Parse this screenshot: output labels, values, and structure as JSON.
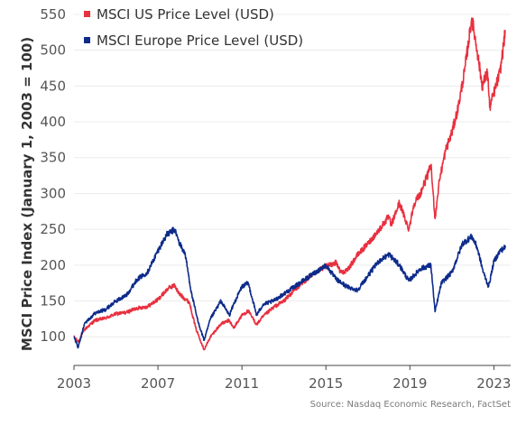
{
  "chart_data": {
    "type": "line",
    "ylabel": "MSCI Price Index (January 1, 2003 = 100)",
    "xlabel": "",
    "xlim": [
      2003,
      2023.8
    ],
    "ylim": [
      60,
      560
    ],
    "y_ticks": [
      100,
      150,
      200,
      250,
      300,
      350,
      400,
      450,
      500,
      550
    ],
    "x_ticks": [
      2003,
      2007,
      2011,
      2015,
      2019,
      2023
    ],
    "grid": "horizontal",
    "legend_position": "top-left",
    "source": "Source: Nasdaq Economic Research, FactSet",
    "series": [
      {
        "name": "MSCI US Price Level (USD)",
        "color": "#e8303f",
        "x": [
          2003.0,
          2003.2,
          2003.5,
          2004.0,
          2004.5,
          2005.0,
          2005.5,
          2006.0,
          2006.5,
          2007.0,
          2007.5,
          2007.8,
          2008.0,
          2008.5,
          2008.8,
          2009.0,
          2009.2,
          2009.5,
          2010.0,
          2010.4,
          2010.6,
          2011.0,
          2011.3,
          2011.7,
          2012.0,
          2012.5,
          2013.0,
          2013.5,
          2014.0,
          2014.5,
          2015.0,
          2015.5,
          2015.7,
          2016.0,
          2016.5,
          2017.0,
          2017.5,
          2018.0,
          2018.1,
          2018.5,
          2018.95,
          2019.2,
          2019.5,
          2019.9,
          2020.0,
          2020.2,
          2020.4,
          2020.7,
          2021.0,
          2021.3,
          2021.6,
          2021.95,
          2022.2,
          2022.45,
          2022.7,
          2022.8,
          2023.0,
          2023.3,
          2023.55
        ],
        "values": [
          100,
          93,
          110,
          123,
          126,
          132,
          134,
          140,
          142,
          152,
          168,
          172,
          160,
          148,
          112,
          97,
          82,
          100,
          118,
          123,
          112,
          130,
          136,
          117,
          128,
          141,
          150,
          165,
          178,
          190,
          198,
          204,
          190,
          192,
          214,
          230,
          248,
          268,
          255,
          287,
          250,
          286,
          300,
          330,
          340,
          265,
          318,
          360,
          385,
          420,
          470,
          545,
          500,
          450,
          470,
          420,
          440,
          470,
          528
        ]
      },
      {
        "name": "MSCI Europe Price Level (USD)",
        "color": "#0d2b8a",
        "x": [
          2003.0,
          2003.2,
          2003.5,
          2004.0,
          2004.5,
          2005.0,
          2005.5,
          2006.0,
          2006.5,
          2007.0,
          2007.4,
          2007.8,
          2008.0,
          2008.3,
          2008.6,
          2008.9,
          2009.2,
          2009.5,
          2010.0,
          2010.4,
          2010.6,
          2011.0,
          2011.3,
          2011.7,
          2012.0,
          2012.5,
          2013.0,
          2013.5,
          2014.0,
          2014.5,
          2015.0,
          2015.5,
          2016.0,
          2016.5,
          2017.0,
          2017.5,
          2018.0,
          2018.5,
          2018.95,
          2019.5,
          2020.0,
          2020.2,
          2020.5,
          2021.0,
          2021.5,
          2021.95,
          2022.2,
          2022.5,
          2022.75,
          2023.0,
          2023.3,
          2023.55
        ],
        "values": [
          100,
          85,
          118,
          133,
          138,
          150,
          158,
          180,
          190,
          220,
          242,
          250,
          232,
          215,
          160,
          122,
          95,
          125,
          150,
          130,
          145,
          170,
          175,
          130,
          145,
          150,
          160,
          170,
          180,
          190,
          200,
          180,
          170,
          165,
          185,
          205,
          215,
          200,
          178,
          195,
          200,
          135,
          175,
          190,
          230,
          240,
          225,
          190,
          170,
          205,
          220,
          225
        ]
      }
    ]
  }
}
